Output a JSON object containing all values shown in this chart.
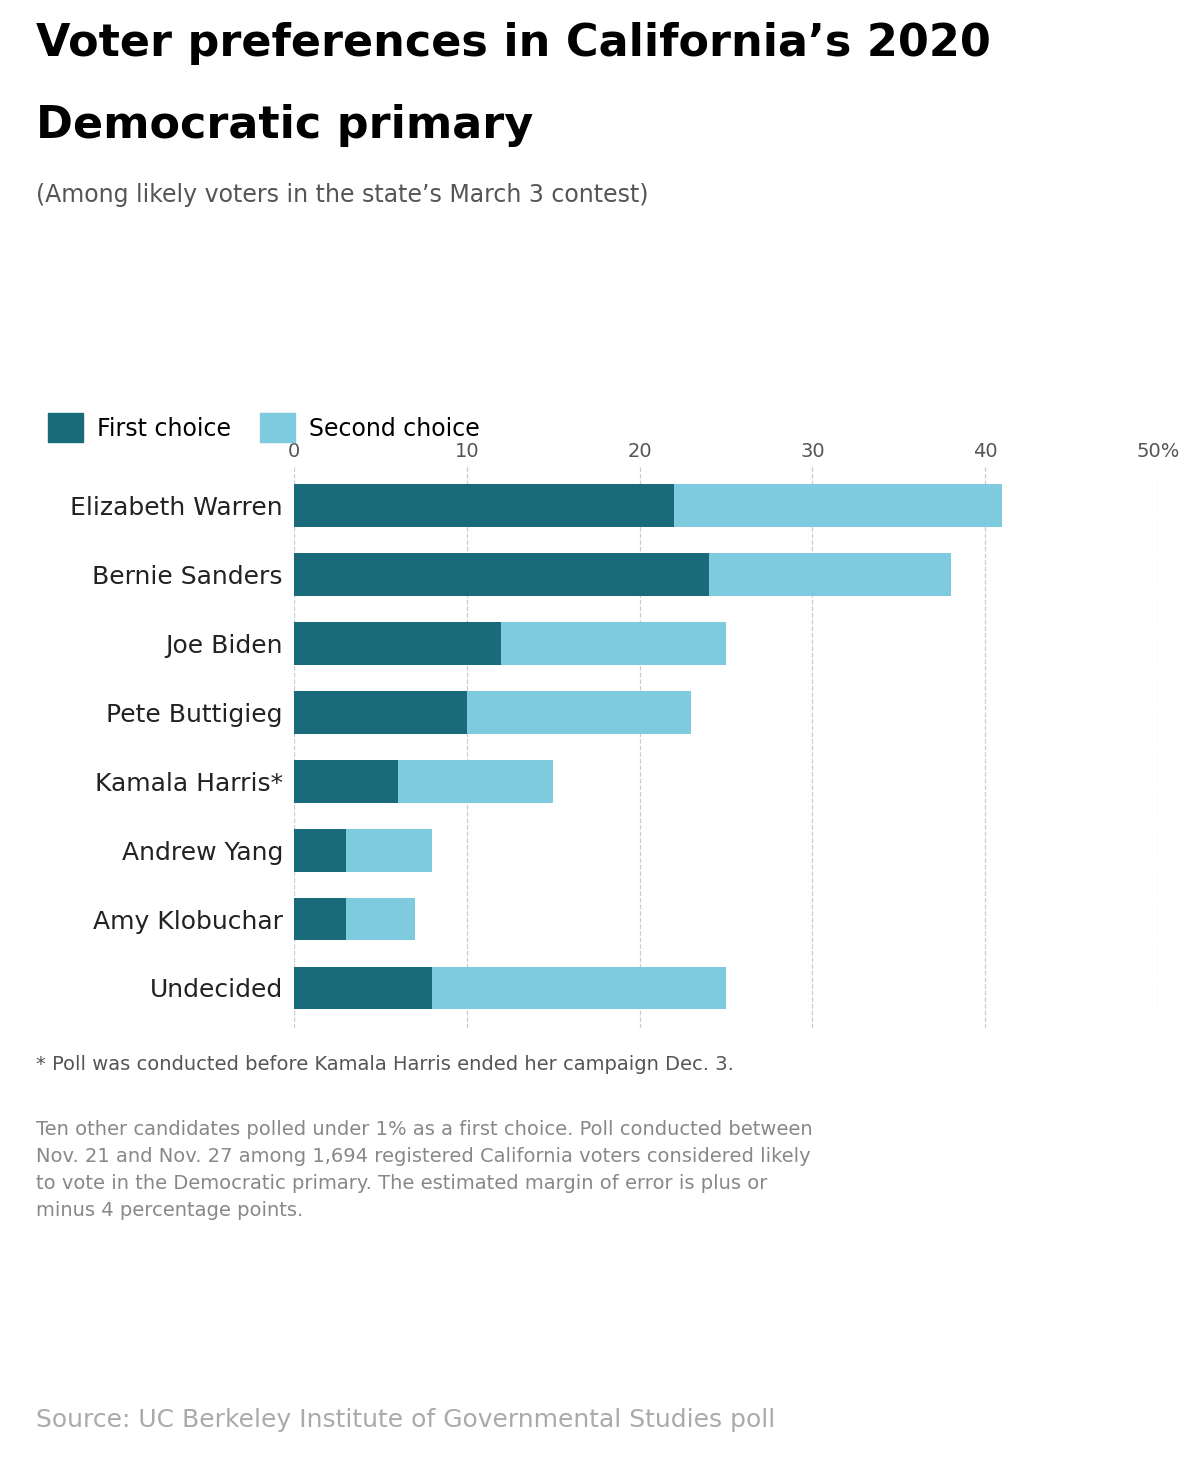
{
  "title_line1": "Voter preferences in California’s 2020",
  "title_line2": "Democratic primary",
  "subtitle": "(Among likely voters in the state’s March 3 contest)",
  "candidates": [
    "Elizabeth Warren",
    "Bernie Sanders",
    "Joe Biden",
    "Pete Buttigieg",
    "Kamala Harris*",
    "Andrew Yang",
    "Amy Klobuchar",
    "Undecided"
  ],
  "first_choice": [
    22,
    24,
    12,
    10,
    6,
    3,
    3,
    8
  ],
  "second_choice": [
    19,
    14,
    13,
    13,
    9,
    5,
    4,
    17
  ],
  "color_first": "#1a6b7a",
  "color_second": "#7ecade",
  "xlim": [
    0,
    50
  ],
  "xticks": [
    0,
    10,
    20,
    30,
    40,
    50
  ],
  "xtick_labels": [
    "0",
    "10",
    "20",
    "30",
    "40",
    "50%"
  ],
  "legend_label_first": "First choice",
  "legend_label_second": "Second choice",
  "footnote1": "* Poll was conducted before Kamala Harris ended her campaign Dec. 3.",
  "footnote2": "Ten other candidates polled under 1% as a first choice. Poll conducted between\nNov. 21 and Nov. 27 among 1,694 registered California voters considered likely\nto vote in the Democratic primary. The estimated margin of error is plus or\nminus 4 percentage points.",
  "source": "Source: UC Berkeley Institute of Governmental Studies poll",
  "background_color": "#ffffff",
  "bar_height": 0.62,
  "gridline_color": "#cccccc",
  "title_fontsize": 32,
  "subtitle_fontsize": 17,
  "label_fontsize": 18,
  "tick_fontsize": 14,
  "legend_fontsize": 17,
  "footnote1_fontsize": 14,
  "footnote2_fontsize": 14,
  "source_fontsize": 18
}
